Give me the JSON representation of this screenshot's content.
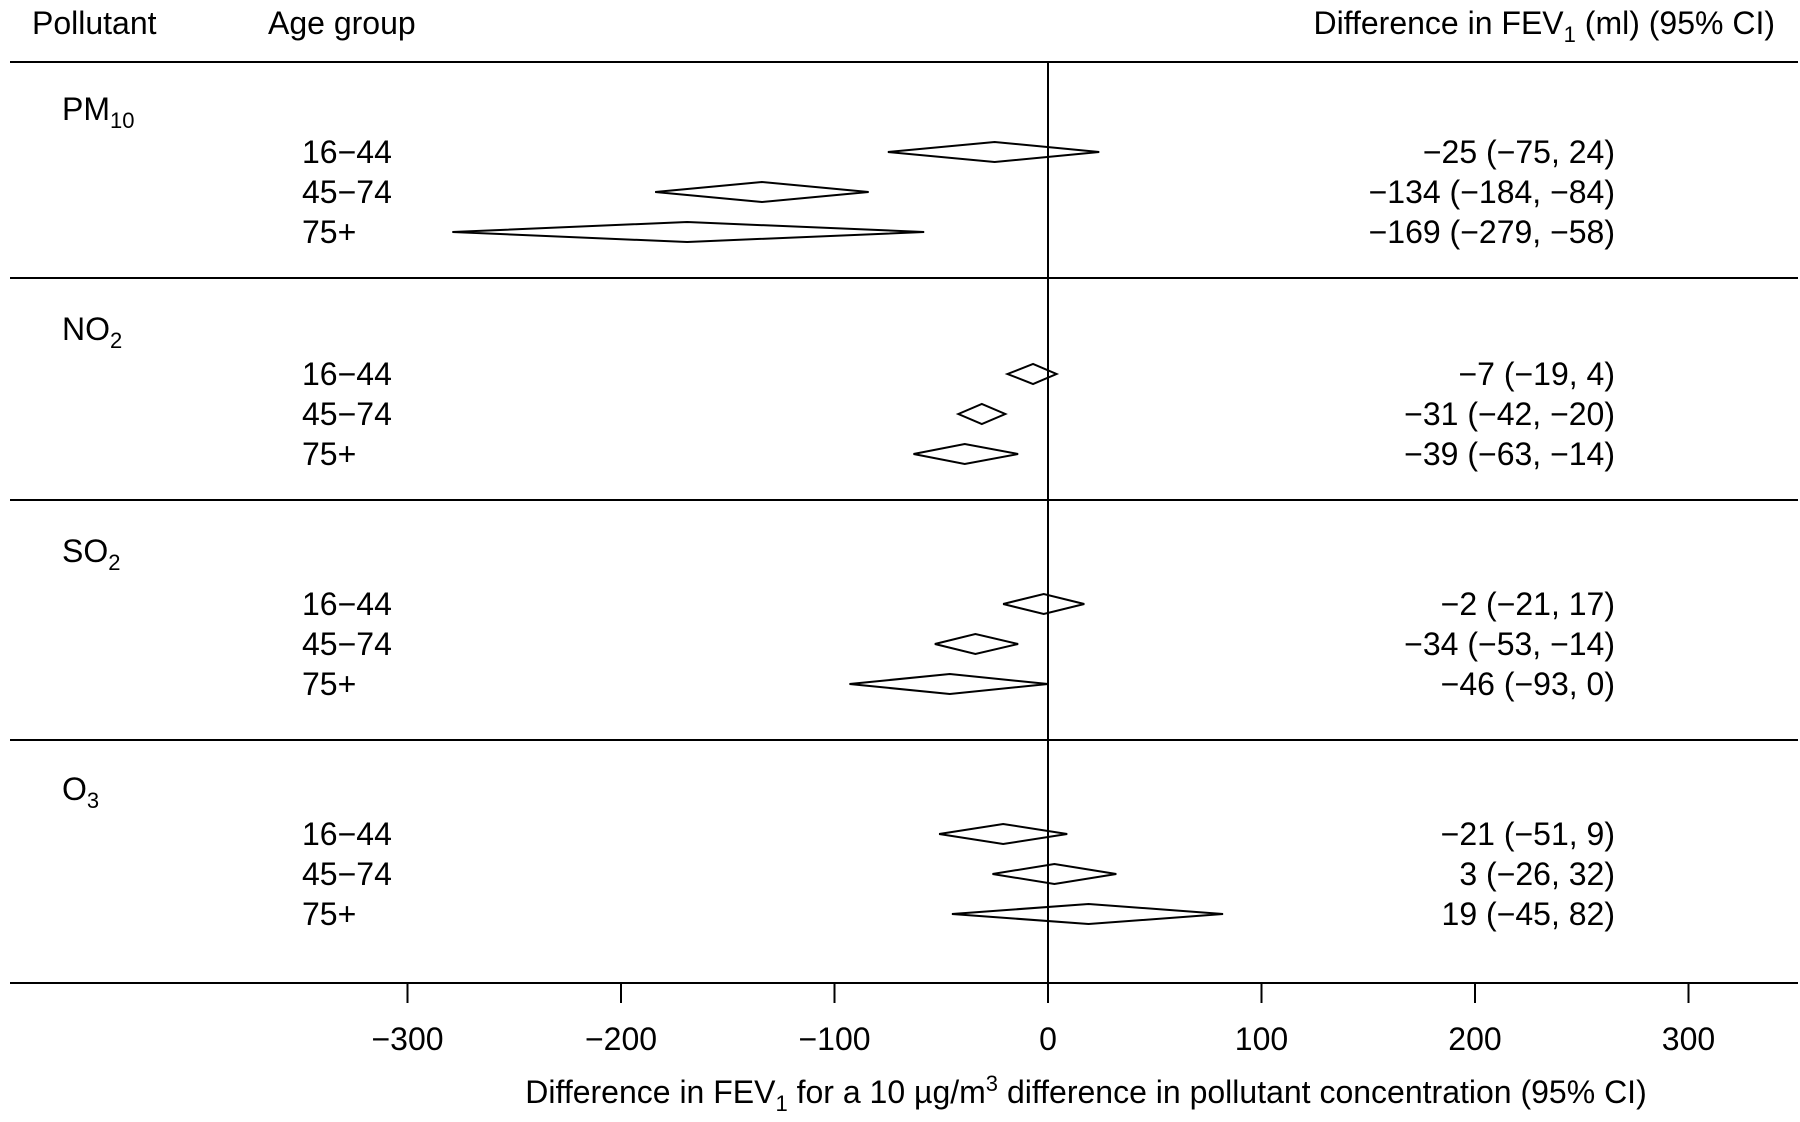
{
  "chart_data": {
    "type": "forest",
    "headers": {
      "pollutant": "Pollutant",
      "age_group": "Age group",
      "difference": {
        "text": "Difference in FEV",
        "sub": "1",
        "rest": " (ml) (95% CI)"
      }
    },
    "groups": [
      {
        "pollutant": {
          "text": "PM",
          "sub": "10"
        },
        "rows": [
          {
            "age": "16−44",
            "est": -25,
            "lo": -75,
            "hi": 24,
            "label": "−25 (−75, 24)"
          },
          {
            "age": "45−74",
            "est": -134,
            "lo": -184,
            "hi": -84,
            "label": "−134 (−184, −84)"
          },
          {
            "age": "75+",
            "est": -169,
            "lo": -279,
            "hi": -58,
            "label": "−169 (−279, −58)"
          }
        ]
      },
      {
        "pollutant": {
          "text": "NO",
          "sub": "2"
        },
        "rows": [
          {
            "age": "16−44",
            "est": -7,
            "lo": -19,
            "hi": 4,
            "label": "−7 (−19, 4)"
          },
          {
            "age": "45−74",
            "est": -31,
            "lo": -42,
            "hi": -20,
            "label": "−31 (−42, −20)"
          },
          {
            "age": "75+",
            "est": -39,
            "lo": -63,
            "hi": -14,
            "label": "−39 (−63, −14)"
          }
        ]
      },
      {
        "pollutant": {
          "text": "SO",
          "sub": "2"
        },
        "rows": [
          {
            "age": "16−44",
            "est": -2,
            "lo": -21,
            "hi": 17,
            "label": "−2 (−21, 17)"
          },
          {
            "age": "45−74",
            "est": -34,
            "lo": -53,
            "hi": -14,
            "label": "−34 (−53, −14)"
          },
          {
            "age": "75+",
            "est": -46,
            "lo": -93,
            "hi": 0,
            "label": "−46 (−93, 0)"
          }
        ]
      },
      {
        "pollutant": {
          "text": "O",
          "sub": "3"
        },
        "rows": [
          {
            "age": "16−44",
            "est": -21,
            "lo": -51,
            "hi": 9,
            "label": "−21 (−51, 9)"
          },
          {
            "age": "45−74",
            "est": 3,
            "lo": -26,
            "hi": 32,
            "label": "3 (−26, 32)"
          },
          {
            "age": "75+",
            "est": 19,
            "lo": -45,
            "hi": 82,
            "label": "19 (−45, 82)"
          }
        ]
      }
    ],
    "x_ticks": [
      -300,
      -200,
      -100,
      0,
      100,
      200,
      300
    ],
    "x_tick_labels": [
      "−300",
      "−200",
      "−100",
      "0",
      "100",
      "200",
      "300"
    ],
    "xlim": [
      -300,
      300
    ],
    "xlabel": {
      "pre": "Difference in FEV",
      "sub": "1",
      "mid": " for a 10 µg/m",
      "sup": "3",
      "post": " difference in pollutant concentration (95% CI)"
    },
    "reference_line": 0,
    "grid": false
  }
}
